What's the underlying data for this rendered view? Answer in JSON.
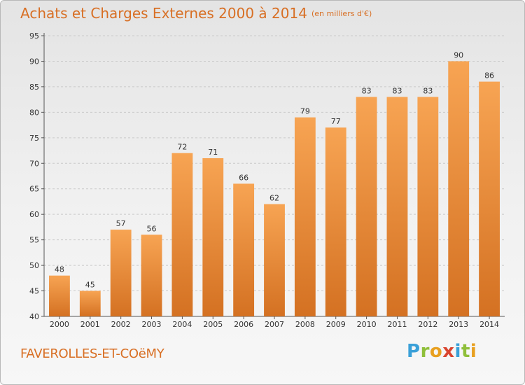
{
  "title": "Achats et Charges Externes 2000 à 2014",
  "unit": "(en milliers d'€)",
  "commune": "FAVEROLLES-ET-COëMY",
  "logo": {
    "letters": [
      {
        "ch": "P",
        "color": "#3aa0d8"
      },
      {
        "ch": "r",
        "color": "#8fbf3a"
      },
      {
        "ch": "o",
        "color": "#e8a020"
      },
      {
        "ch": "x",
        "color": "#d9442f"
      },
      {
        "ch": "i",
        "color": "#3aa0d8"
      },
      {
        "ch": "t",
        "color": "#8fbf3a"
      },
      {
        "ch": "i",
        "color": "#e8a020"
      }
    ]
  },
  "colors": {
    "bar_top": "#f7a453",
    "bar_bottom": "#d47122",
    "accent": "#d86f24"
  },
  "chart_data": {
    "type": "bar",
    "categories": [
      "2000",
      "2001",
      "2002",
      "2003",
      "2004",
      "2005",
      "2006",
      "2007",
      "2008",
      "2009",
      "2010",
      "2011",
      "2012",
      "2013",
      "2014"
    ],
    "values": [
      48,
      45,
      57,
      56,
      72,
      71,
      66,
      62,
      79,
      77,
      83,
      83,
      83,
      90,
      86
    ],
    "title": "Achats et Charges Externes 2000 à 2014",
    "ylim": [
      40,
      95
    ],
    "yticks": [
      40,
      45,
      50,
      55,
      60,
      65,
      70,
      75,
      80,
      85,
      90,
      95
    ],
    "grid": true,
    "legend": "none"
  }
}
